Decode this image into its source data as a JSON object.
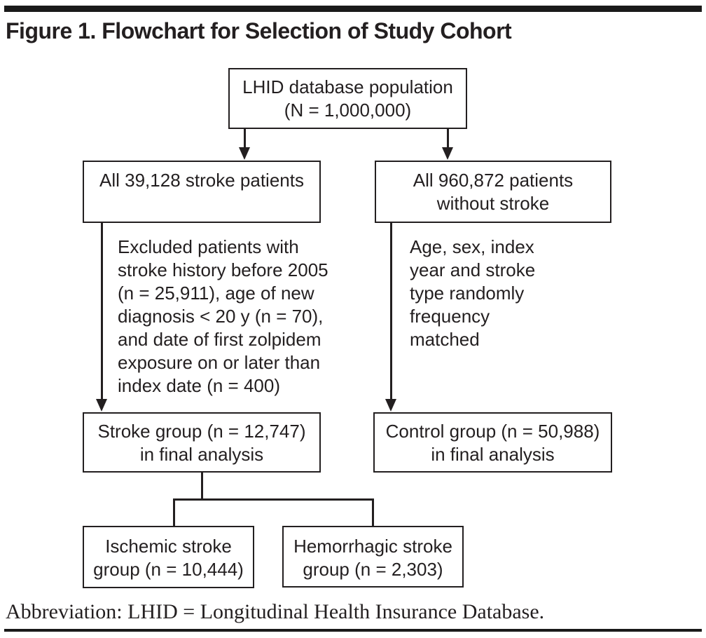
{
  "colors": {
    "ink": "#231f20",
    "background": "#ffffff"
  },
  "title": "Figure 1. Flowchart for Selection of Study Cohort",
  "flowchart": {
    "database_box": {
      "lines": [
        "LHID database population",
        "(N = 1,000,000)"
      ]
    },
    "stroke_patients_box": {
      "lines": [
        "All 39,128 stroke patients"
      ]
    },
    "no_stroke_box": {
      "lines": [
        "All 960,872 patients",
        "without stroke"
      ]
    },
    "exclusion_note": {
      "lines": [
        "Excluded patients with",
        "stroke history before 2005",
        "(n = 25,911), age of new",
        "diagnosis < 20 y (n = 70),",
        "and date of first zolpidem",
        "exposure on or later than",
        "index date (n = 400)"
      ]
    },
    "matching_note": {
      "lines": [
        "Age, sex, index",
        "year and stroke",
        "type randomly",
        "frequency",
        "matched"
      ]
    },
    "stroke_group_box": {
      "lines": [
        "Stroke group (n = 12,747)",
        "in final analysis"
      ]
    },
    "control_group_box": {
      "lines": [
        "Control group (n = 50,988)",
        "in final analysis"
      ]
    },
    "ischemic_box": {
      "lines": [
        "Ischemic stroke",
        "group (n = 10,444)"
      ]
    },
    "hemorrhagic_box": {
      "lines": [
        "Hemorrhagic stroke",
        "group (n = 2,303)"
      ]
    }
  },
  "footnote": "Abbreviation: LHID = Longitudinal Health Insurance Database."
}
